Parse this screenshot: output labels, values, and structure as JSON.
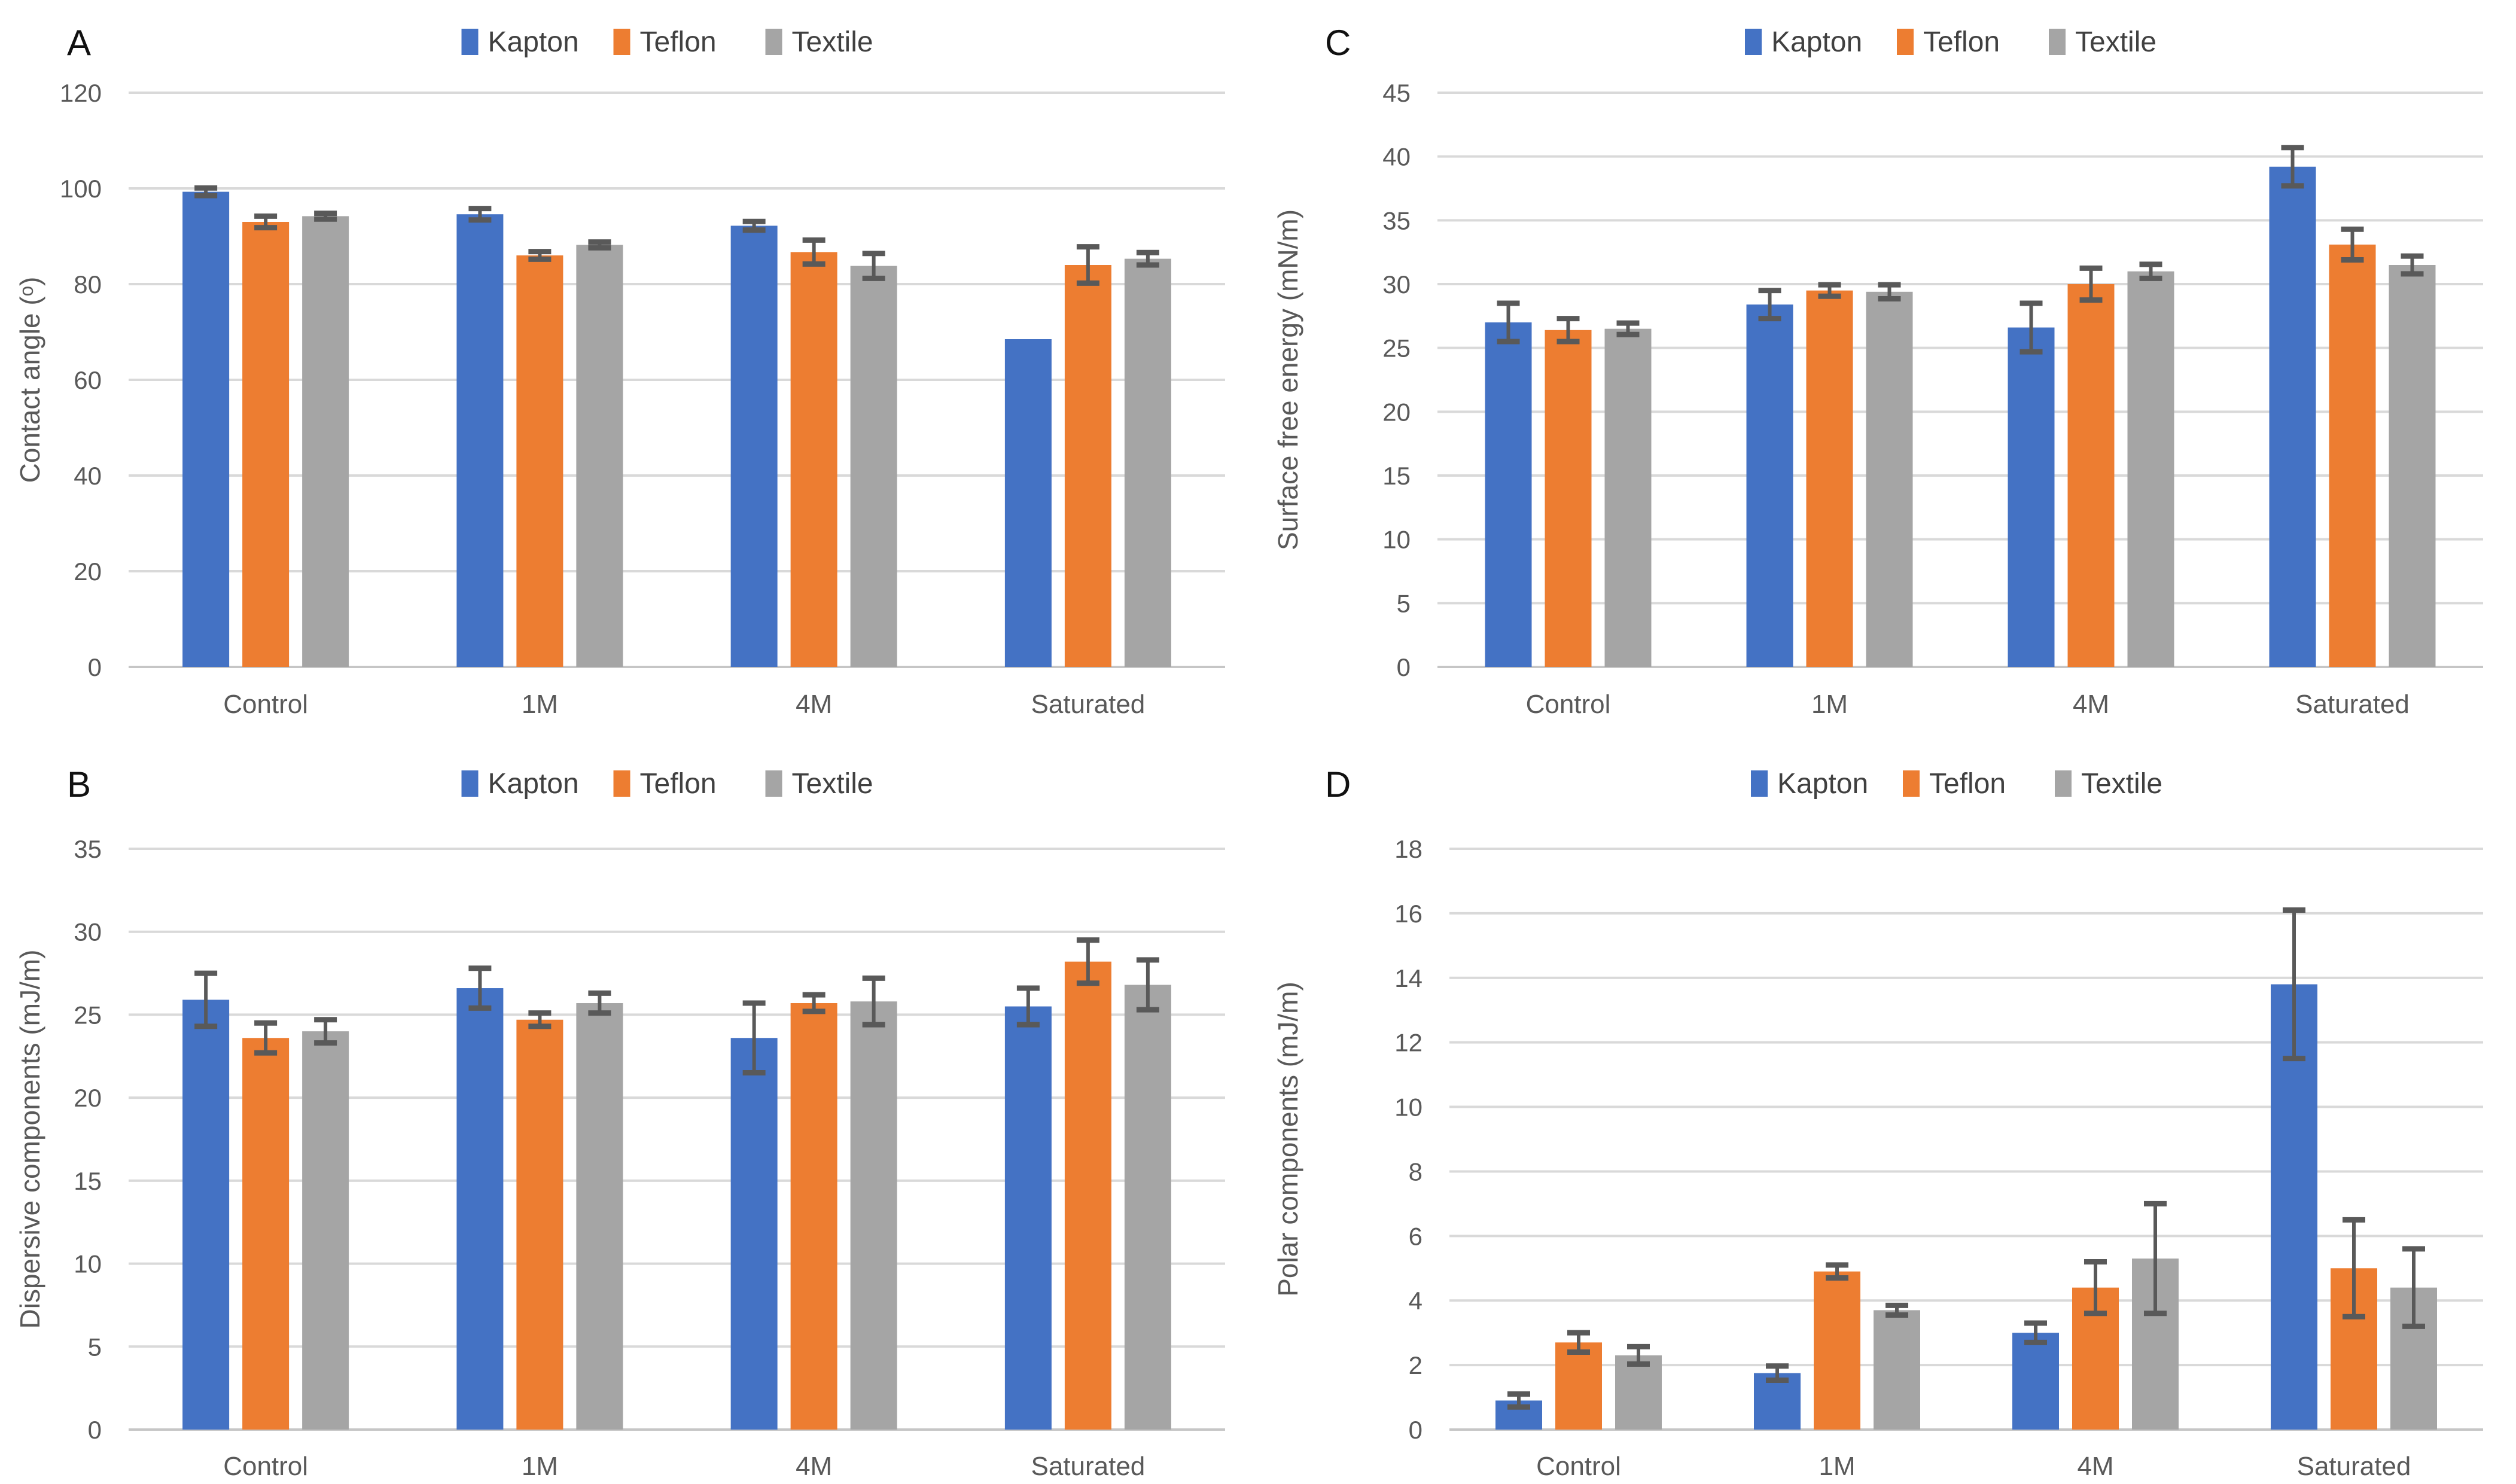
{
  "colors": {
    "kapton": "#4472C4",
    "teflon": "#ED7D31",
    "textile": "#A5A5A5",
    "error_bar": "#595959",
    "gridline": "#D9D9D9",
    "axis_line": "#C6C6C6",
    "axis_text": "#595959",
    "legend_text": "#404040",
    "panel_letter": "#111111"
  },
  "legend": [
    "Kapton",
    "Teflon",
    "Textile"
  ],
  "chart_data": [
    {
      "type": "bar",
      "panel": "A",
      "ylabel": "Contact angle (ᵒ)",
      "categories": [
        "Control",
        "1M",
        "4M",
        "Saturated"
      ],
      "ylim": [
        0,
        120
      ],
      "ytick_step": 20,
      "yticks": [
        0,
        20,
        40,
        60,
        80,
        100,
        120
      ],
      "grid": true,
      "legend_position": "top-center",
      "series": [
        {
          "name": "Kapton",
          "color": "#4472C4",
          "values": [
            99.3,
            94.6,
            92.2,
            68.5
          ],
          "errors": [
            0.8,
            1.2,
            0.9,
            0
          ]
        },
        {
          "name": "Teflon",
          "color": "#ED7D31",
          "values": [
            93.0,
            86.0,
            86.7,
            84.0
          ],
          "errors": [
            1.2,
            0.8,
            2.5,
            3.8
          ]
        },
        {
          "name": "Textile",
          "color": "#A5A5A5",
          "values": [
            94.2,
            88.2,
            83.8,
            85.3
          ],
          "errors": [
            0.6,
            0.6,
            2.6,
            1.3
          ]
        }
      ]
    },
    {
      "type": "bar",
      "panel": "B",
      "ylabel": "Dispersive components (mJ/m)",
      "categories": [
        "Control",
        "1M",
        "4M",
        "Saturated"
      ],
      "ylim": [
        0,
        35
      ],
      "ytick_step": 5,
      "yticks": [
        0,
        5,
        10,
        15,
        20,
        25,
        30,
        35
      ],
      "grid": true,
      "legend_position": "top-center",
      "series": [
        {
          "name": "Kapton",
          "color": "#4472C4",
          "values": [
            25.9,
            26.6,
            23.6,
            25.5
          ],
          "errors": [
            1.6,
            1.2,
            2.1,
            1.1
          ]
        },
        {
          "name": "Teflon",
          "color": "#ED7D31",
          "values": [
            23.6,
            24.7,
            25.7,
            28.2
          ],
          "errors": [
            0.9,
            0.4,
            0.5,
            1.3
          ]
        },
        {
          "name": "Textile",
          "color": "#A5A5A5",
          "values": [
            24.0,
            25.7,
            25.8,
            26.8
          ],
          "errors": [
            0.7,
            0.6,
            1.4,
            1.5
          ]
        }
      ]
    },
    {
      "type": "bar",
      "panel": "C",
      "ylabel": "Surface free energy (mN/m)",
      "categories": [
        "Control",
        "1M",
        "4M",
        "Saturated"
      ],
      "ylim": [
        0,
        45
      ],
      "ytick_step": 5,
      "yticks": [
        0,
        5,
        10,
        15,
        20,
        25,
        30,
        35,
        40,
        45
      ],
      "grid": true,
      "legend_position": "top-center",
      "series": [
        {
          "name": "Kapton",
          "color": "#4472C4",
          "values": [
            27.0,
            28.4,
            26.6,
            39.2
          ],
          "errors": [
            1.5,
            1.1,
            1.9,
            1.5
          ]
        },
        {
          "name": "Teflon",
          "color": "#ED7D31",
          "values": [
            26.4,
            29.5,
            30.0,
            33.1
          ],
          "errors": [
            0.9,
            0.45,
            1.25,
            1.2
          ]
        },
        {
          "name": "Textile",
          "color": "#A5A5A5",
          "values": [
            26.5,
            29.4,
            31.0,
            31.5
          ],
          "errors": [
            0.45,
            0.55,
            0.55,
            0.7
          ]
        }
      ]
    },
    {
      "type": "bar",
      "panel": "D",
      "ylabel": "Polar components (mJ/m)",
      "categories": [
        "Control",
        "1M",
        "4M",
        "Saturated"
      ],
      "ylim": [
        0,
        18
      ],
      "ytick_step": 2,
      "yticks": [
        0,
        2,
        4,
        6,
        8,
        10,
        12,
        14,
        16,
        18
      ],
      "grid": true,
      "legend_position": "top-center",
      "series": [
        {
          "name": "Kapton",
          "color": "#4472C4",
          "values": [
            0.9,
            1.75,
            3.0,
            13.8
          ],
          "errors": [
            0.2,
            0.22,
            0.3,
            2.3
          ]
        },
        {
          "name": "Teflon",
          "color": "#ED7D31",
          "values": [
            2.7,
            4.9,
            4.4,
            5.0
          ],
          "errors": [
            0.3,
            0.2,
            0.8,
            1.5
          ]
        },
        {
          "name": "Textile",
          "color": "#A5A5A5",
          "values": [
            2.3,
            3.7,
            5.3,
            4.4
          ],
          "errors": [
            0.27,
            0.15,
            1.7,
            1.2
          ]
        }
      ]
    }
  ]
}
